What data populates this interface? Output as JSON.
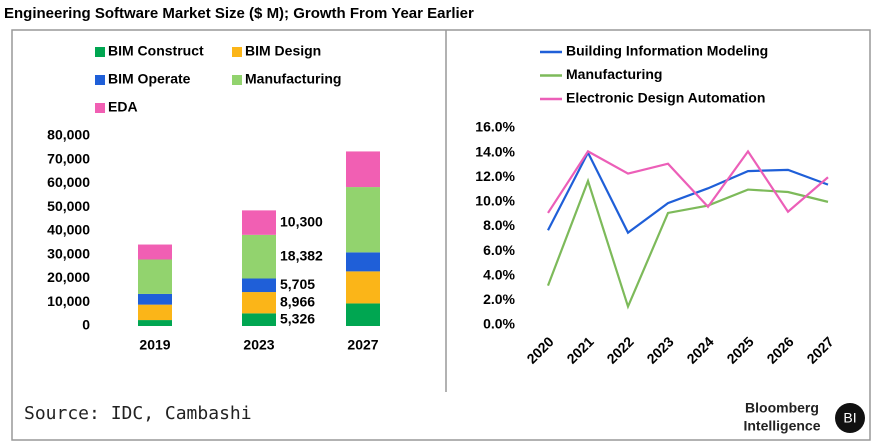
{
  "title": "Engineering Software Market Size ($ M); Growth From Year Earlier",
  "source": "Source: IDC, Cambashi",
  "brand": {
    "line1": "Bloomberg",
    "line2": "Intelligence",
    "badge": "BI"
  },
  "chart_data": [
    {
      "type": "stacked-bar",
      "categories": [
        "2019",
        "2023",
        "2027"
      ],
      "series": [
        {
          "name": "BIM Construct",
          "color": "#00a651",
          "values": [
            2500,
            5326,
            9500
          ],
          "value_labels": [
            null,
            "5,326",
            null
          ]
        },
        {
          "name": "BIM Design",
          "color": "#fbb518",
          "values": [
            6500,
            8966,
            13500
          ],
          "value_labels": [
            null,
            "8,966",
            null
          ]
        },
        {
          "name": "BIM Operate",
          "color": "#1f5fd8",
          "values": [
            4500,
            5705,
            8000
          ],
          "value_labels": [
            null,
            "5,705",
            null
          ]
        },
        {
          "name": "Manufacturing",
          "color": "#92d36e",
          "values": [
            14500,
            18382,
            27500
          ],
          "value_labels": [
            null,
            "18,382",
            null
          ]
        },
        {
          "name": "EDA",
          "color": "#f15fb3",
          "values": [
            6300,
            10300,
            15000
          ],
          "value_labels": [
            null,
            "10,300",
            null
          ]
        }
      ],
      "ylim": [
        0,
        80000
      ],
      "yticks": [
        0,
        {
          "value": 10000,
          "label": "10,000"
        },
        {
          "value": 20000,
          "label": "20,000"
        },
        {
          "value": 30000,
          "label": "30,000"
        },
        {
          "value": 40000,
          "label": "40,000"
        },
        {
          "value": 50000,
          "label": "50,000"
        },
        {
          "value": 60000,
          "label": "60,000"
        },
        {
          "value": 70000,
          "label": "70,000"
        },
        {
          "value": 80000,
          "label": "80,000"
        }
      ]
    },
    {
      "type": "line",
      "categories": [
        "2020",
        "2021",
        "2022",
        "2023",
        "2024",
        "2025",
        "2026",
        "2027"
      ],
      "series": [
        {
          "name": "Building Information Modeling",
          "color": "#1f5fd8",
          "values": [
            7.7,
            14.0,
            7.5,
            9.9,
            11.1,
            12.5,
            12.6,
            11.4
          ]
        },
        {
          "name": "Manufacturing",
          "color": "#7dba5a",
          "values": [
            3.2,
            11.7,
            1.5,
            9.1,
            9.7,
            11.0,
            10.8,
            10.0
          ]
        },
        {
          "name": "Electronic Design Automation",
          "color": "#ec5fb8",
          "values": [
            9.1,
            14.1,
            12.3,
            13.1,
            9.6,
            14.1,
            9.2,
            12.0
          ]
        }
      ],
      "ylim": [
        0,
        16
      ],
      "yticks": [
        {
          "value": 0,
          "label": "0.0%"
        },
        {
          "value": 2,
          "label": "2.0%"
        },
        {
          "value": 4,
          "label": "4.0%"
        },
        {
          "value": 6,
          "label": "6.0%"
        },
        {
          "value": 8,
          "label": "8.0%"
        },
        {
          "value": 10,
          "label": "10.0%"
        },
        {
          "value": 12,
          "label": "12.0%"
        },
        {
          "value": 14,
          "label": "14.0%"
        },
        {
          "value": 16,
          "label": "16.0%"
        }
      ]
    }
  ]
}
